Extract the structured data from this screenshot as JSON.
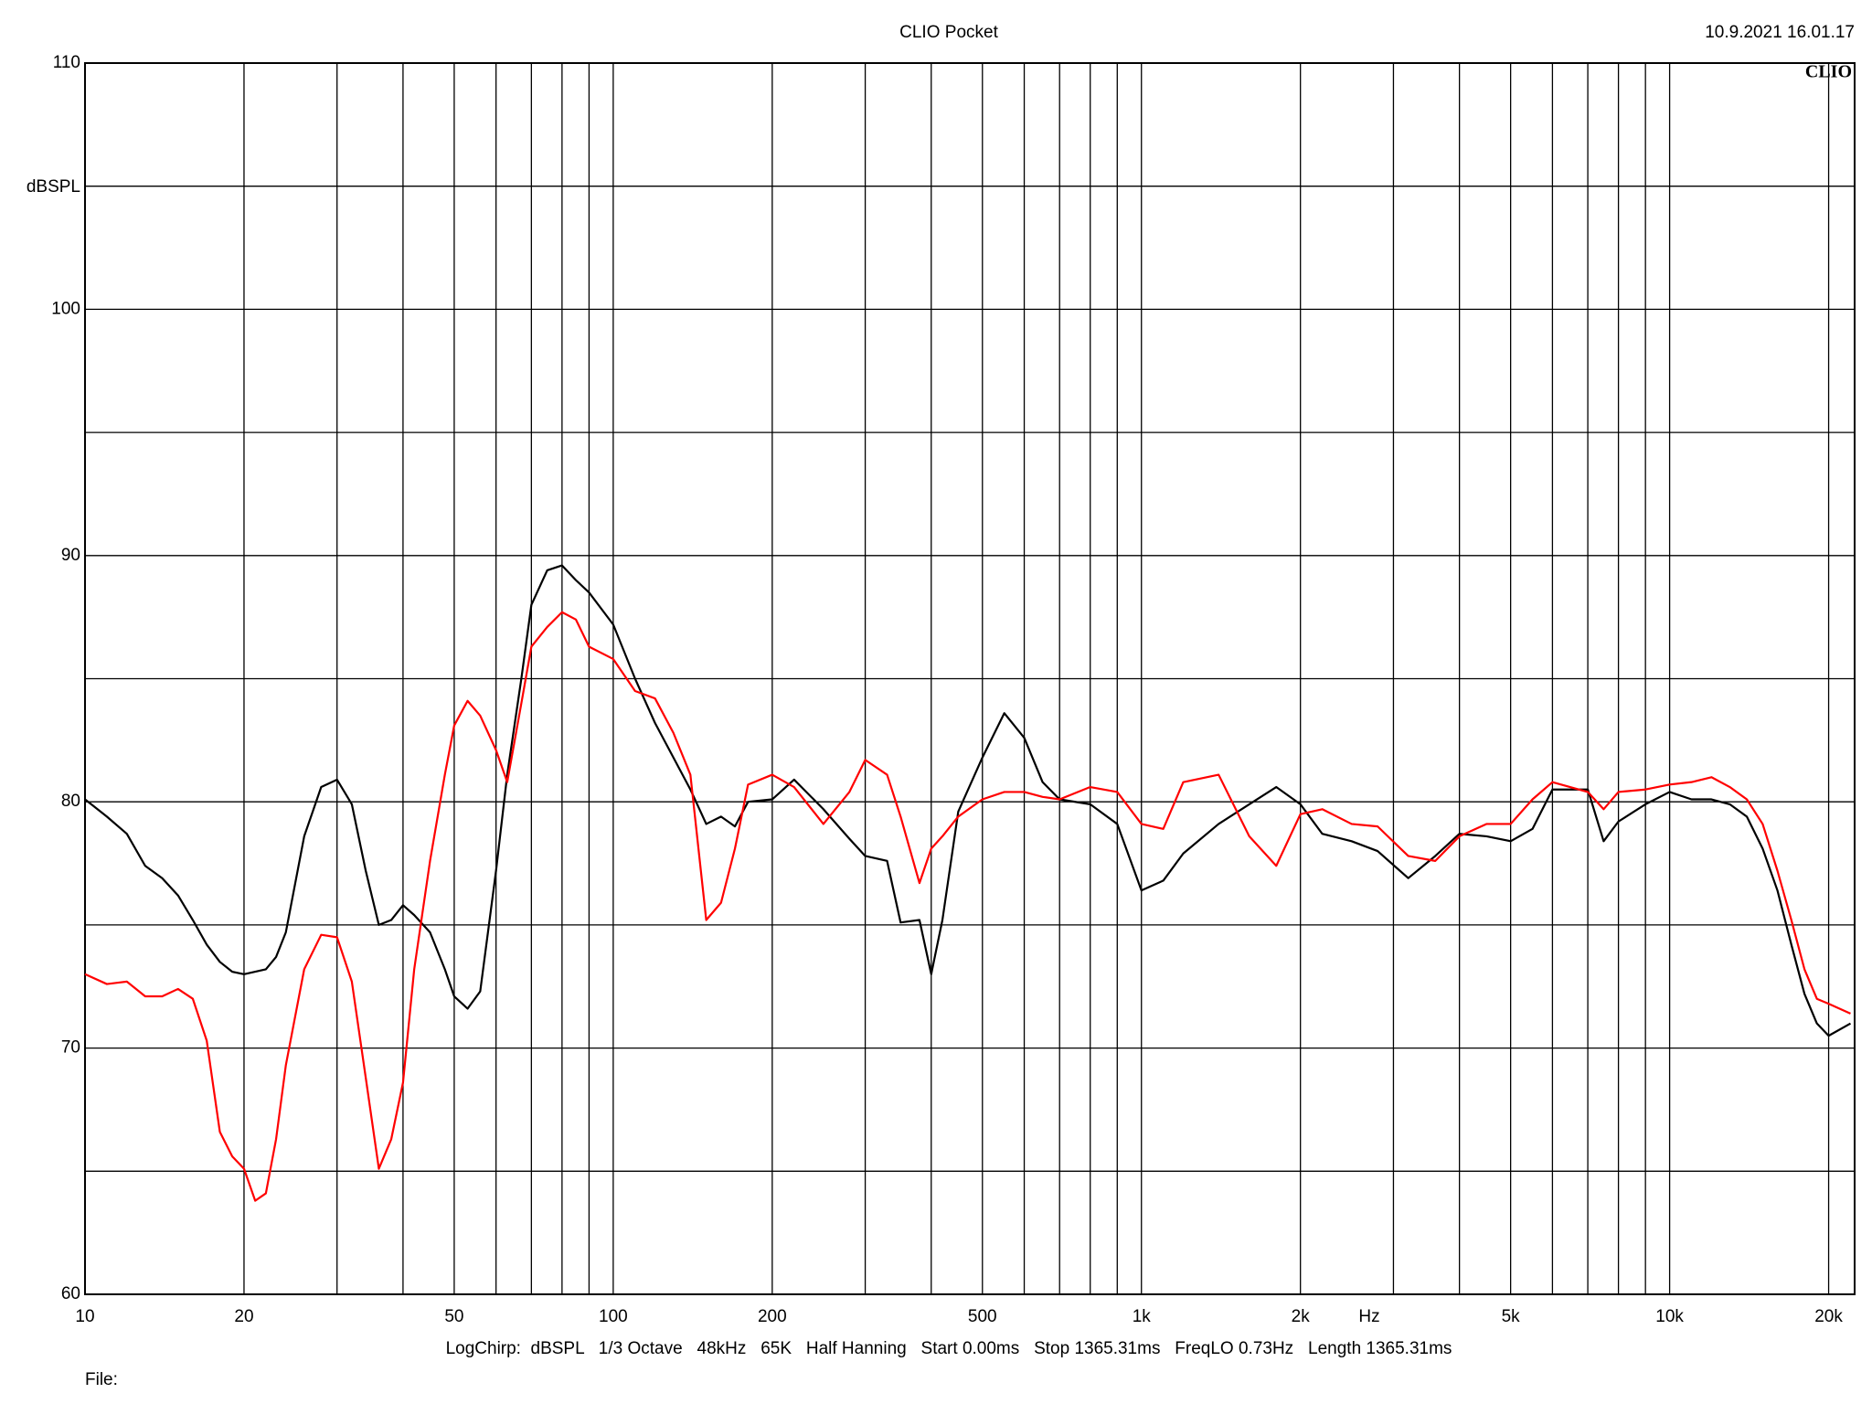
{
  "chart_data": {
    "type": "line",
    "title": "CLIO Pocket",
    "timestamp": "10.9.2021 16.01.17",
    "logo": "CLIO",
    "y_label": "dBSPL",
    "x_label": "Hz",
    "footer": "LogChirp:  dBSPL   1/3 Octave   48kHz   65K   Half Hanning   Start 0.00ms   Stop 1365.31ms   FreqLO 0.73Hz   Length 1365.31ms",
    "file_label": "File:",
    "x_scale": "log",
    "grid": true,
    "xlim": [
      10,
      22400
    ],
    "ylim": [
      60,
      110
    ],
    "xticks": [
      10,
      20,
      50,
      100,
      200,
      500,
      {
        "value": 1000,
        "label": "1k"
      },
      {
        "value": 2000,
        "label": "2k"
      },
      {
        "value": 5000,
        "label": "5k"
      },
      {
        "value": 10000,
        "label": "10k"
      },
      {
        "value": 20000,
        "label": "20k"
      }
    ],
    "x_minor_grid": [
      30,
      40,
      60,
      70,
      80,
      90,
      300,
      400,
      600,
      700,
      800,
      900,
      3000,
      4000,
      6000,
      7000,
      8000,
      9000
    ],
    "yticks": [
      60,
      70,
      80,
      90,
      100,
      110
    ],
    "y_minor_grid": [
      65,
      75,
      85,
      95,
      105
    ],
    "x": [
      10,
      11,
      12,
      13,
      14,
      15,
      16,
      17,
      18,
      19,
      20,
      21,
      22,
      23,
      24,
      26,
      28,
      30,
      32,
      34,
      36,
      38,
      40,
      42,
      45,
      48,
      50,
      53,
      56,
      60,
      63,
      67,
      70,
      75,
      80,
      85,
      90,
      100,
      110,
      120,
      130,
      140,
      150,
      160,
      170,
      180,
      200,
      220,
      250,
      280,
      300,
      330,
      350,
      380,
      400,
      420,
      450,
      500,
      550,
      600,
      650,
      700,
      800,
      900,
      1000,
      1100,
      1200,
      1400,
      1600,
      1800,
      2000,
      2200,
      2500,
      2800,
      3200,
      3600,
      4000,
      4500,
      5000,
      5500,
      6000,
      7000,
      7500,
      8000,
      9000,
      10000,
      11000,
      12000,
      13000,
      14000,
      15000,
      16000,
      17000,
      18000,
      19000,
      20000,
      22000
    ],
    "series": [
      {
        "color": "#000000",
        "values": [
          80.1,
          79.4,
          78.7,
          77.4,
          76.9,
          76.2,
          75.2,
          74.2,
          73.5,
          73.1,
          73.0,
          73.1,
          73.2,
          73.7,
          74.7,
          78.6,
          80.6,
          80.9,
          79.9,
          77.2,
          75.0,
          75.2,
          75.8,
          75.4,
          74.7,
          73.2,
          72.1,
          71.6,
          72.3,
          77.2,
          81.1,
          85.0,
          88.0,
          89.4,
          89.6,
          89.0,
          88.5,
          87.2,
          85.0,
          83.2,
          81.8,
          80.5,
          79.1,
          79.4,
          79.0,
          80.0,
          80.1,
          80.9,
          79.7,
          78.5,
          77.8,
          77.6,
          75.1,
          75.2,
          73.0,
          75.2,
          79.6,
          81.8,
          83.6,
          82.6,
          80.8,
          80.1,
          79.9,
          79.1,
          76.4,
          76.8,
          77.9,
          79.1,
          79.9,
          80.6,
          79.9,
          78.7,
          78.4,
          78.0,
          76.9,
          77.8,
          78.7,
          78.6,
          78.4,
          78.9,
          80.5,
          80.5,
          78.4,
          79.2,
          79.9,
          80.4,
          80.1,
          80.1,
          79.9,
          79.4,
          78.1,
          76.4,
          74.2,
          72.2,
          71.0,
          70.5,
          71.0
        ]
      },
      {
        "color": "#ff0000",
        "values": [
          73.0,
          72.6,
          72.7,
          72.1,
          72.1,
          72.4,
          72.0,
          70.3,
          66.6,
          65.6,
          65.1,
          63.8,
          64.1,
          66.3,
          69.3,
          73.2,
          74.6,
          74.5,
          72.7,
          68.8,
          65.1,
          66.3,
          68.6,
          73.2,
          77.6,
          81.1,
          83.1,
          84.1,
          83.5,
          82.1,
          80.8,
          84.0,
          86.3,
          87.1,
          87.7,
          87.4,
          86.3,
          85.8,
          84.5,
          84.2,
          82.8,
          81.1,
          75.2,
          75.9,
          78.1,
          80.7,
          81.1,
          80.6,
          79.1,
          80.4,
          81.7,
          81.1,
          79.4,
          76.7,
          78.1,
          78.6,
          79.4,
          80.1,
          80.4,
          80.4,
          80.2,
          80.1,
          80.6,
          80.4,
          79.1,
          78.9,
          80.8,
          81.1,
          78.6,
          77.4,
          79.5,
          79.7,
          79.1,
          79.0,
          77.8,
          77.6,
          78.6,
          79.1,
          79.1,
          80.1,
          80.8,
          80.4,
          79.7,
          80.4,
          80.5,
          80.7,
          80.8,
          81.0,
          80.6,
          80.1,
          79.1,
          77.2,
          75.2,
          73.2,
          72.0,
          71.8,
          71.4
        ]
      }
    ]
  }
}
